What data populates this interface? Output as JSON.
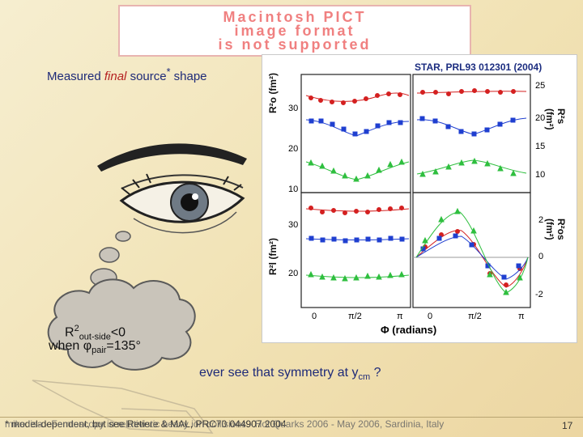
{
  "pict_banner": {
    "lines": [
      "Macintosh PICT",
      "image format",
      "is not supported"
    ]
  },
  "source_title": {
    "prefix": "Measured ",
    "emphasis": "final",
    "suffix": " source",
    "superscript": "*",
    "tail": " shape"
  },
  "figure": {
    "reference": "STAR, PRL93 012301 (2004)",
    "x_axis_label": "Φ (radians)",
    "x_ticks": [
      "0",
      "π/2",
      "π",
      "0",
      "π/2",
      "π"
    ],
    "panels": {
      "top_left": {
        "label": "R²o (fm²)",
        "ticks": [
          "30",
          "20",
          "10"
        ]
      },
      "top_right": {
        "label": "R²s (fm²)",
        "ticks": [
          "25",
          "20",
          "15",
          "10"
        ]
      },
      "bottom_left": {
        "label": "R²l (fm²)",
        "ticks": [
          "30",
          "20"
        ]
      },
      "bottom_right": {
        "label": "R²os (fm²)",
        "ticks": [
          "2",
          "0",
          "-2"
        ]
      }
    }
  },
  "thought_bubble": {
    "line1_prefix": "R",
    "line1_sup": "2",
    "line1_sub": "out-side",
    "line1_suffix": "<0",
    "line2_prefix": "when ",
    "line2_symbol": "φ",
    "line2_sub": "pair",
    "line2_suffix": "=135°"
  },
  "question": {
    "text": "ever see that symmetry at y",
    "sub": "cm",
    "suffix": " ?"
  },
  "footer": {
    "text": "* model-dependent, but see Retiere & MAL, PRC70 044907 2004",
    "overlap_text": "mike lisa - Femtoscopy in relativistic heavy ion collisions - Hot Quarks 2006 - May 2006, Sardinia, Italy",
    "page_number": "17"
  },
  "colors": {
    "title_blue": "#1e2a78",
    "emphasis_red": "#b52020",
    "series_red": "#d42020",
    "series_blue": "#1f3fd0",
    "series_green": "#2fbf3f"
  }
}
